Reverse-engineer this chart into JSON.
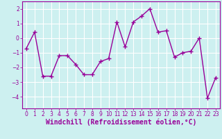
{
  "x": [
    0,
    1,
    2,
    3,
    4,
    5,
    6,
    7,
    8,
    9,
    10,
    11,
    12,
    13,
    14,
    15,
    16,
    17,
    18,
    19,
    20,
    21,
    22,
    23
  ],
  "y": [
    -0.7,
    0.4,
    -2.6,
    -2.6,
    -1.2,
    -1.2,
    -1.8,
    -2.5,
    -2.5,
    -1.6,
    -1.4,
    1.1,
    -0.6,
    1.1,
    1.5,
    2.0,
    0.4,
    0.5,
    -1.3,
    -1.0,
    -0.9,
    0.0,
    -4.1,
    -2.7
  ],
  "line_color": "#990099",
  "marker": "+",
  "marker_size": 4,
  "xlabel": "Windchill (Refroidissement éolien,°C)",
  "xlabel_fontsize": 7,
  "bg_color": "#cdf0f0",
  "grid_color": "#ffffff",
  "ylim": [
    -4.8,
    2.5
  ],
  "xlim": [
    -0.5,
    23.5
  ],
  "yticks": [
    -4,
    -3,
    -2,
    -1,
    0,
    1,
    2
  ],
  "xticks": [
    0,
    1,
    2,
    3,
    4,
    5,
    6,
    7,
    8,
    9,
    10,
    11,
    12,
    13,
    14,
    15,
    16,
    17,
    18,
    19,
    20,
    21,
    22,
    23
  ],
  "tick_fontsize": 5.5,
  "tick_color": "#990099",
  "spine_color": "#990099",
  "figure_bg": "#cdf0f0",
  "linewidth": 1.0,
  "markeredgewidth": 1.0
}
